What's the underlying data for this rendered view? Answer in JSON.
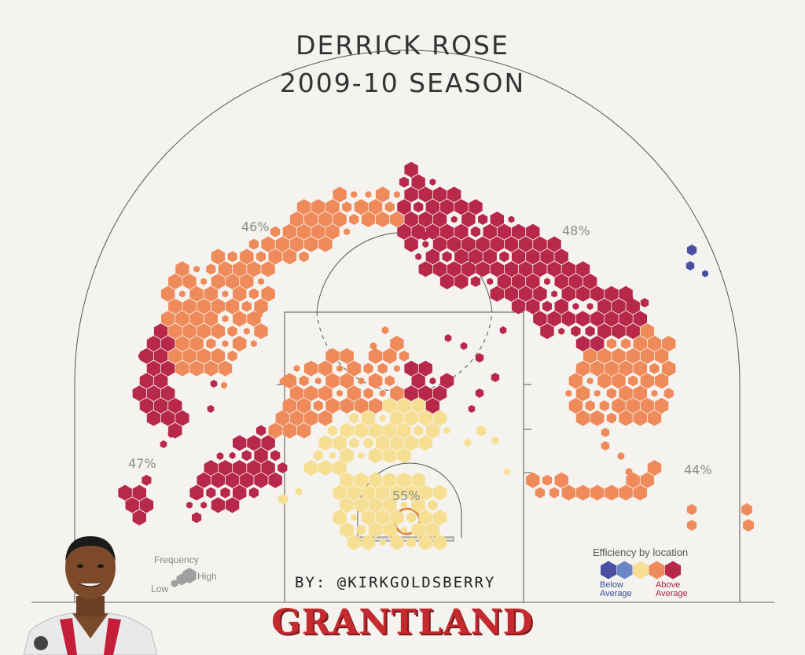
{
  "title": {
    "line1": "DERRICK ROSE",
    "line2": "2009-10 SEASON"
  },
  "byline": "BY: @KIRKGOLDSBERRY",
  "brand": "GRANTLAND",
  "zone_percentages": [
    {
      "zone": "left-wing-three",
      "label": "46%"
    },
    {
      "zone": "right-wing-three",
      "label": "48%"
    },
    {
      "zone": "left-corner-three",
      "label": "47%"
    },
    {
      "zone": "right-corner-three",
      "label": "44%"
    },
    {
      "zone": "restricted-area",
      "label": "55%"
    }
  ],
  "legend": {
    "efficiency_title": "Efficiency by location",
    "below_label": "Below Average",
    "above_label": "Above Average",
    "efficiency_scale": [
      "#4a4fa3",
      "#6b86c6",
      "#f6df93",
      "#ef8a5a",
      "#b8284a"
    ],
    "frequency_title": "Frequency",
    "frequency_low": "Low",
    "frequency_high": "High"
  },
  "colors": {
    "well_above": "#b8284a",
    "above": "#ef8a5a",
    "average": "#f6df93",
    "below": "#4a4fa3",
    "court_line": "#555555",
    "brand_red": "#c52a2f"
  },
  "chart_data": {
    "type": "heatmap",
    "title": "DERRICK ROSE 2009-10 SEASON",
    "xlabel": "",
    "ylabel": "",
    "encoding": "hexagonal shot chart; color = efficiency by location, size = frequency",
    "zones": [
      {
        "name": "left wing three",
        "efficiency_pct": 46,
        "color_class": "above"
      },
      {
        "name": "right wing three",
        "efficiency_pct": 48,
        "color_class": "well_above"
      },
      {
        "name": "left corner three",
        "efficiency_pct": 47,
        "color_class": "well_above"
      },
      {
        "name": "right corner three",
        "efficiency_pct": 44,
        "color_class": "above"
      },
      {
        "name": "restricted area",
        "efficiency_pct": 55,
        "color_class": "average"
      }
    ]
  }
}
